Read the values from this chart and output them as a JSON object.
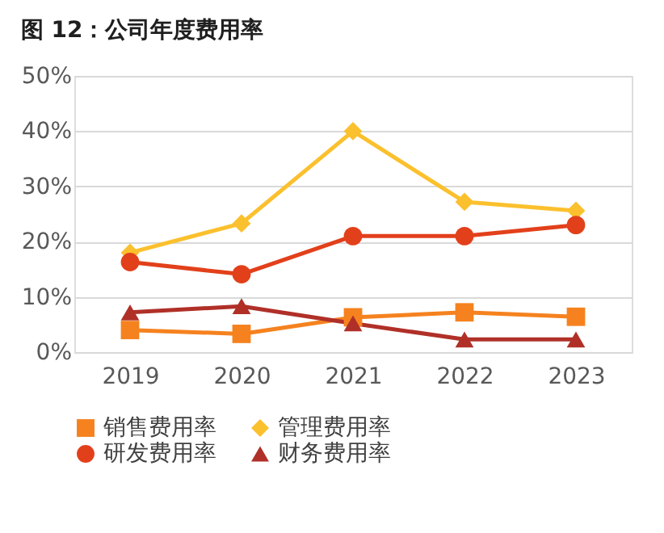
{
  "chart_data": {
    "type": "line",
    "title": "图 12：公司年度费用率",
    "categories": [
      "2019",
      "2020",
      "2021",
      "2022",
      "2023"
    ],
    "series": [
      {
        "name": "销售费用率",
        "color": "#f5821f",
        "marker": "square",
        "values": [
          4,
          3.3,
          6.3,
          7.2,
          6.4
        ]
      },
      {
        "name": "管理费用率",
        "color": "#fbc02d",
        "marker": "diamond",
        "values": [
          18,
          23.3,
          40,
          27.2,
          25.6
        ]
      },
      {
        "name": "研发费用率",
        "color": "#e2401b",
        "marker": "circle",
        "values": [
          16.3,
          14.1,
          21,
          21,
          23
        ]
      },
      {
        "name": "财务费用率",
        "color": "#b03028",
        "marker": "triangle",
        "values": [
          7.2,
          8.3,
          5.2,
          2.3,
          2.3
        ]
      }
    ],
    "ylim": [
      0,
      50
    ],
    "yticks": [
      {
        "value": 0,
        "label": "0%"
      },
      {
        "value": 10,
        "label": "10%"
      },
      {
        "value": 20,
        "label": "20%"
      },
      {
        "value": 30,
        "label": "30%"
      },
      {
        "value": 40,
        "label": "40%"
      },
      {
        "value": 50,
        "label": "50%"
      }
    ],
    "grid": "y",
    "legend": "bottom",
    "line_style": "solid"
  }
}
